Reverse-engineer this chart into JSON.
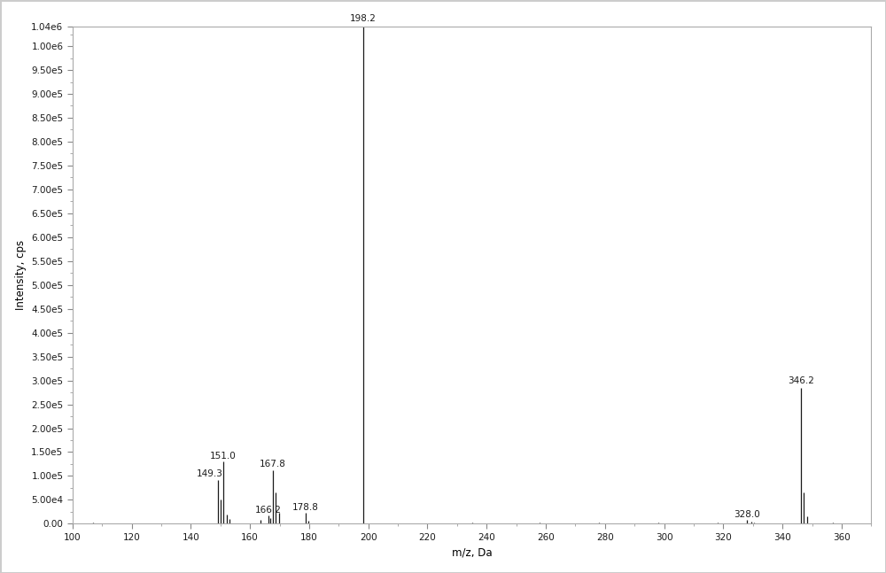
{
  "peaks": [
    {
      "mz": 107.0,
      "intensity": 2000,
      "label": null
    },
    {
      "mz": 113.0,
      "intensity": 1500,
      "label": null
    },
    {
      "mz": 149.3,
      "intensity": 92000,
      "label": "149.3"
    },
    {
      "mz": 150.0,
      "intensity": 50000,
      "label": null
    },
    {
      "mz": 151.0,
      "intensity": 130000,
      "label": "151.0"
    },
    {
      "mz": 152.2,
      "intensity": 20000,
      "label": null
    },
    {
      "mz": 153.0,
      "intensity": 10000,
      "label": null
    },
    {
      "mz": 163.5,
      "intensity": 8000,
      "label": null
    },
    {
      "mz": 166.2,
      "intensity": 18000,
      "label": "166.2"
    },
    {
      "mz": 167.0,
      "intensity": 12000,
      "label": null
    },
    {
      "mz": 167.8,
      "intensity": 112000,
      "label": "167.8"
    },
    {
      "mz": 168.8,
      "intensity": 65000,
      "label": null
    },
    {
      "mz": 169.8,
      "intensity": 22000,
      "label": null
    },
    {
      "mz": 178.8,
      "intensity": 22000,
      "label": "178.8"
    },
    {
      "mz": 179.8,
      "intensity": 6000,
      "label": null
    },
    {
      "mz": 198.2,
      "intensity": 1040000,
      "label": "198.2"
    },
    {
      "mz": 222.0,
      "intensity": 1500,
      "label": null
    },
    {
      "mz": 235.0,
      "intensity": 2000,
      "label": null
    },
    {
      "mz": 248.0,
      "intensity": 1500,
      "label": null
    },
    {
      "mz": 258.0,
      "intensity": 2500,
      "label": null
    },
    {
      "mz": 268.0,
      "intensity": 1500,
      "label": null
    },
    {
      "mz": 278.0,
      "intensity": 2000,
      "label": null
    },
    {
      "mz": 288.0,
      "intensity": 1500,
      "label": null
    },
    {
      "mz": 298.0,
      "intensity": 1800,
      "label": null
    },
    {
      "mz": 308.0,
      "intensity": 1500,
      "label": null
    },
    {
      "mz": 318.0,
      "intensity": 2000,
      "label": null
    },
    {
      "mz": 328.0,
      "intensity": 7500,
      "label": "328.0"
    },
    {
      "mz": 329.5,
      "intensity": 4000,
      "label": null
    },
    {
      "mz": 330.5,
      "intensity": 3000,
      "label": null
    },
    {
      "mz": 346.2,
      "intensity": 285000,
      "label": "346.2"
    },
    {
      "mz": 347.2,
      "intensity": 65000,
      "label": null
    },
    {
      "mz": 348.2,
      "intensity": 15000,
      "label": null
    },
    {
      "mz": 357.0,
      "intensity": 2000,
      "label": null
    }
  ],
  "xlim": [
    100,
    370
  ],
  "ylim": [
    0,
    1040000.0
  ],
  "xticks": [
    100,
    120,
    140,
    160,
    180,
    200,
    220,
    240,
    260,
    280,
    300,
    320,
    340,
    360
  ],
  "yticks": [
    0,
    50000,
    100000,
    150000,
    200000,
    250000,
    300000,
    350000,
    400000,
    450000,
    500000,
    550000,
    600000,
    650000,
    700000,
    750000,
    800000,
    850000,
    900000,
    950000,
    1000000,
    1040000
  ],
  "ytick_labels": [
    "0.00",
    "5.00e4",
    "1.00e5",
    "1.50e5",
    "2.00e5",
    "2.50e5",
    "3.00e5",
    "3.50e5",
    "4.00e5",
    "4.50e5",
    "5.00e5",
    "5.50e5",
    "6.00e5",
    "6.50e5",
    "7.00e5",
    "7.50e5",
    "8.00e5",
    "8.50e5",
    "9.00e5",
    "9.50e5",
    "1.00e6",
    "1.04e6"
  ],
  "xlabel": "m/z, Da",
  "ylabel": "Intensity, cps",
  "line_color": "#1a1a1a",
  "background_color": "#ffffff",
  "plot_bg_color": "#ffffff",
  "border_color": "#aaaaaa",
  "label_fontsize": 7.5,
  "axis_label_fontsize": 8.5,
  "tick_fontsize": 7.5,
  "figsize": [
    10.0,
    6.47
  ],
  "dpi": 100
}
